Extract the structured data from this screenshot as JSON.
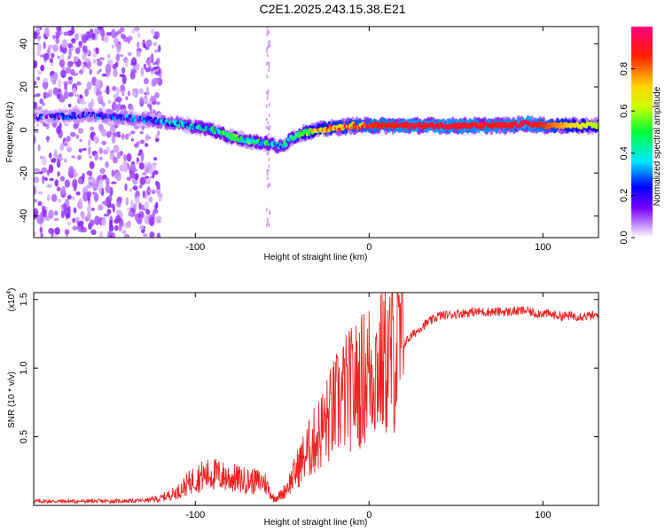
{
  "title": "C2E1.2025.243.15.38.E21",
  "chart_data": [
    {
      "type": "heatmap",
      "xlabel": "Height of straight line (km)",
      "ylabel": "Frequency (Hz)",
      "xlim": [
        -193,
        132
      ],
      "ylim": [
        -50,
        48
      ],
      "x_ticks": [
        -100,
        0,
        100
      ],
      "y_ticks": [
        -40,
        -20,
        0,
        20,
        40
      ],
      "colorbar": {
        "label": "Normalized spectral amplitude",
        "range": [
          0,
          1
        ],
        "ticks": [
          "0.0",
          "0.2",
          "0.4",
          "0.6",
          "0.8"
        ],
        "tick_values": [
          0,
          0.2,
          0.4,
          0.6,
          0.8
        ]
      },
      "ridge": {
        "x": [
          -190,
          -160,
          -130,
          -110,
          -90,
          -80,
          -70,
          -60,
          -50,
          -45,
          -40,
          -35,
          -30,
          -20,
          -10,
          0,
          20,
          40,
          60,
          80,
          90,
          100,
          130
        ],
        "freq": [
          6,
          7,
          5,
          3,
          0,
          -3,
          -5,
          -6,
          -8,
          -4,
          -2,
          -1,
          0,
          1,
          2,
          2,
          2,
          2,
          2,
          2,
          3,
          2,
          2
        ],
        "amplitude": [
          0.15,
          0.2,
          0.25,
          0.3,
          0.4,
          0.45,
          0.45,
          0.4,
          0.35,
          0.45,
          0.5,
          0.6,
          0.7,
          0.75,
          0.8,
          0.85,
          0.9,
          0.92,
          0.9,
          0.9,
          0.95,
          0.85,
          0.6
        ]
      },
      "noise_region_x": [
        -193,
        -120
      ]
    },
    {
      "type": "line",
      "xlabel": "Height of straight line (km)",
      "ylabel": "SNR (10 * v/v)",
      "y_multiplier_label": "(x10",
      "y_multiplier_exp": "4",
      "y_multiplier_close": ")",
      "xlim": [
        -193,
        132
      ],
      "ylim": [
        0,
        15500
      ],
      "x_ticks": [
        -100,
        0,
        100
      ],
      "y_ticks": [
        5000,
        10000,
        15000
      ],
      "y_tick_labels": [
        "0.5",
        "1.0",
        "1.5"
      ],
      "series": [
        {
          "name": "SNR",
          "color": "#ee2222",
          "x": [
            -193,
            -170,
            -150,
            -130,
            -120,
            -110,
            -100,
            -90,
            -80,
            -70,
            -60,
            -55,
            -50,
            -45,
            -40,
            -35,
            -30,
            -25,
            -20,
            -15,
            -10,
            -5,
            0,
            10,
            20,
            30,
            40,
            60,
            80,
            90,
            95,
            100,
            110,
            132
          ],
          "y": [
            300,
            300,
            300,
            350,
            500,
            1000,
            2000,
            2300,
            2000,
            1800,
            1700,
            500,
            800,
            1800,
            3000,
            4000,
            5000,
            6000,
            7000,
            8000,
            8500,
            9000,
            9800,
            10500,
            11800,
            13000,
            13800,
            14100,
            14100,
            14200,
            14000,
            14000,
            13800,
            13800
          ]
        }
      ]
    }
  ]
}
